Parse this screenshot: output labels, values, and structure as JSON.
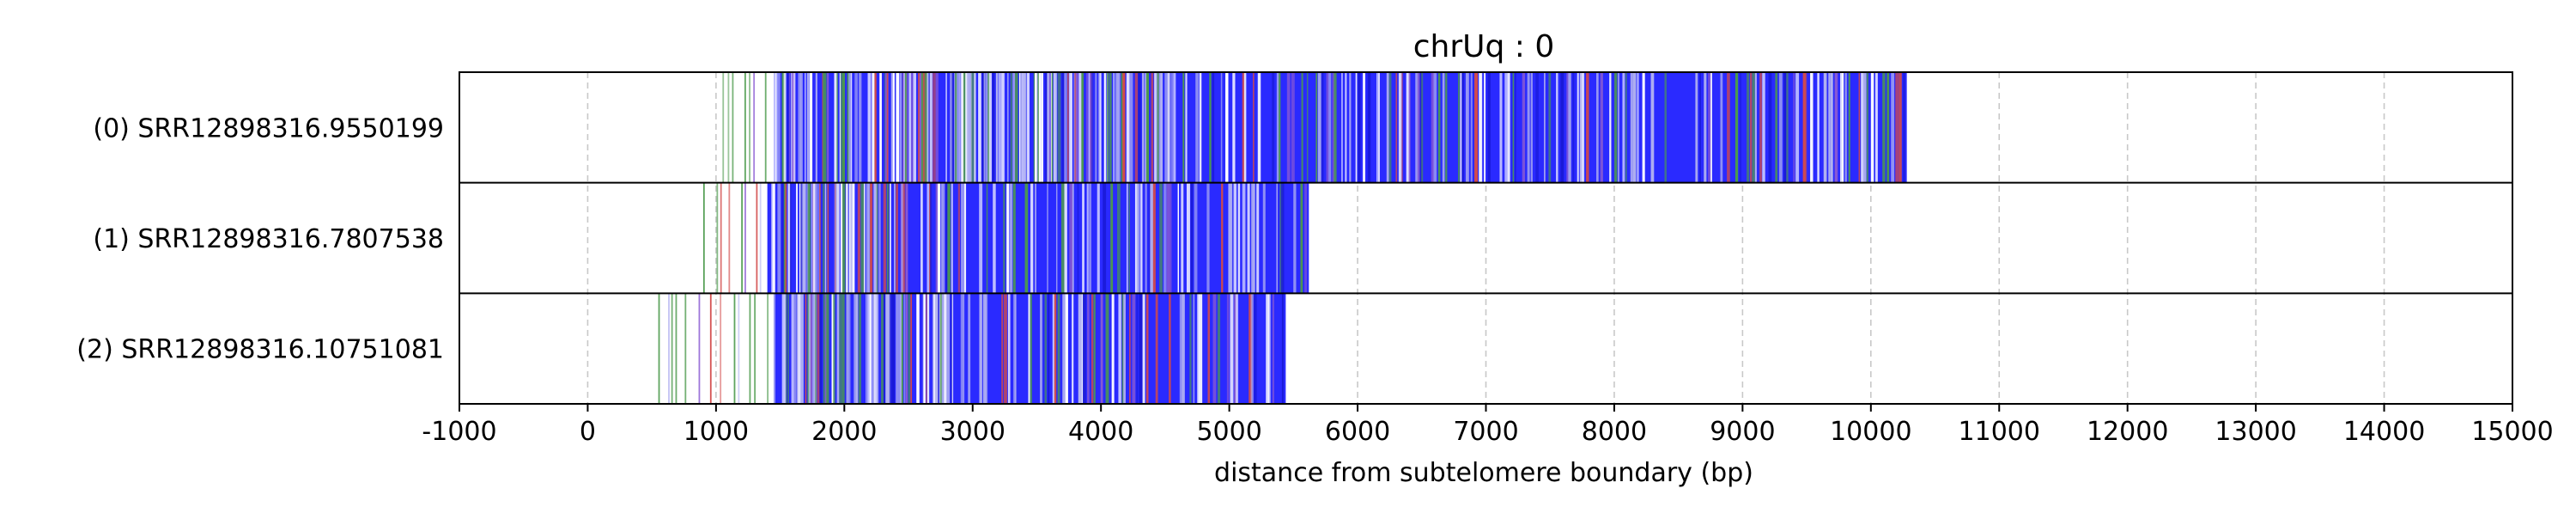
{
  "chart_data": {
    "type": "heatmap",
    "title": "chrUq : 0",
    "xlabel": "distance from subtelomere boundary (bp)",
    "ylabel": "",
    "xlim": [
      -1000,
      15000
    ],
    "x_ticks": [
      -1000,
      0,
      1000,
      2000,
      3000,
      4000,
      5000,
      6000,
      7000,
      8000,
      9000,
      10000,
      11000,
      12000,
      13000,
      14000,
      15000
    ],
    "x_tick_labels": [
      "-1000",
      "0",
      "1000",
      "2000",
      "3000",
      "4000",
      "5000",
      "6000",
      "7000",
      "8000",
      "9000",
      "10000",
      "11000",
      "12000",
      "13000",
      "14000",
      "15000"
    ],
    "grid": true,
    "legend": "none",
    "colors": {
      "dominant": "#2a2aff",
      "light": "#b4b4f0",
      "green": "#4c9a4c",
      "red": "#d24a4a",
      "purple": "#8a5ad2",
      "grid": "#c8c8c8"
    },
    "reads": [
      {
        "label": "(0) SRR12898316.9550199",
        "start": 1050,
        "dense_start": 1450,
        "end": 10280
      },
      {
        "label": "(1) SRR12898316.7807538",
        "start": 900,
        "dense_start": 1400,
        "end": 5620
      },
      {
        "label": "(2) SRR12898316.10751081",
        "start": 550,
        "dense_start": 1450,
        "end": 5440
      }
    ]
  }
}
